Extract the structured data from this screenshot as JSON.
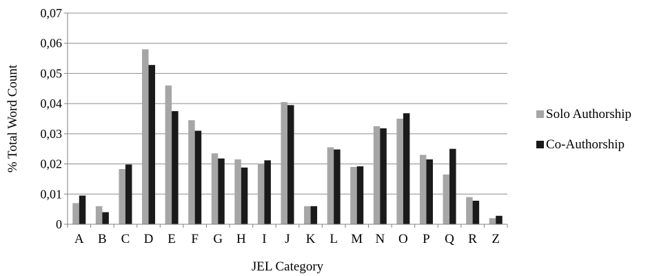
{
  "chart_data": {
    "type": "bar",
    "title": "",
    "xlabel": "JEL Category",
    "ylabel": "% Total Word Count",
    "ylim": [
      0,
      0.07
    ],
    "yticks": [
      "0",
      "0,01",
      "0,02",
      "0,03",
      "0,04",
      "0,05",
      "0,06",
      "0,07"
    ],
    "categories": [
      "A",
      "B",
      "C",
      "D",
      "E",
      "F",
      "G",
      "H",
      "I",
      "J",
      "K",
      "L",
      "M",
      "N",
      "O",
      "P",
      "Q",
      "R",
      "Z"
    ],
    "series": [
      {
        "name": "Solo Authorship",
        "color": "#a6a6a6",
        "values": [
          0.007,
          0.006,
          0.0183,
          0.058,
          0.046,
          0.0345,
          0.0235,
          0.0215,
          0.02,
          0.0405,
          0.006,
          0.0255,
          0.019,
          0.0325,
          0.035,
          0.023,
          0.0165,
          0.009,
          0.002
        ]
      },
      {
        "name": "Co-Authorship",
        "color": "#1a1a1a",
        "values": [
          0.0095,
          0.004,
          0.0198,
          0.0528,
          0.0375,
          0.031,
          0.0218,
          0.0188,
          0.0212,
          0.0395,
          0.006,
          0.0248,
          0.0192,
          0.0318,
          0.0368,
          0.0215,
          0.025,
          0.0078,
          0.0028
        ]
      }
    ],
    "grid": true,
    "legend_position": "right"
  }
}
